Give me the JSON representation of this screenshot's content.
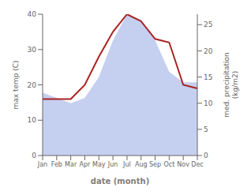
{
  "chart_data": {
    "type": "line",
    "xlabel": "date (month)",
    "ylabel": "max temp (C)",
    "y2label": "med. precipitation\n(kg/m2)",
    "categories": [
      "Jan",
      "Feb",
      "Mar",
      "Apr",
      "May",
      "Jun",
      "Jul",
      "Aug",
      "Sep",
      "Oct",
      "Nov",
      "Dec"
    ],
    "series": [
      {
        "type": "area",
        "color": "#c5cff0",
        "axis": "y2",
        "values": [
          12,
          11,
          10,
          11,
          15,
          22,
          27,
          26,
          22,
          16,
          14,
          14
        ]
      },
      {
        "type": "line",
        "color": "#aa2222",
        "values": [
          16,
          16,
          16,
          20,
          28,
          35,
          40,
          38,
          33,
          32,
          20,
          19
        ]
      }
    ],
    "ylim": [
      0,
      40
    ],
    "yticks": [
      0,
      10,
      20,
      30,
      40
    ],
    "y2lim": [
      0,
      27
    ],
    "y2ticks": [
      0,
      5,
      10,
      15,
      20,
      25
    ],
    "grid": false
  }
}
